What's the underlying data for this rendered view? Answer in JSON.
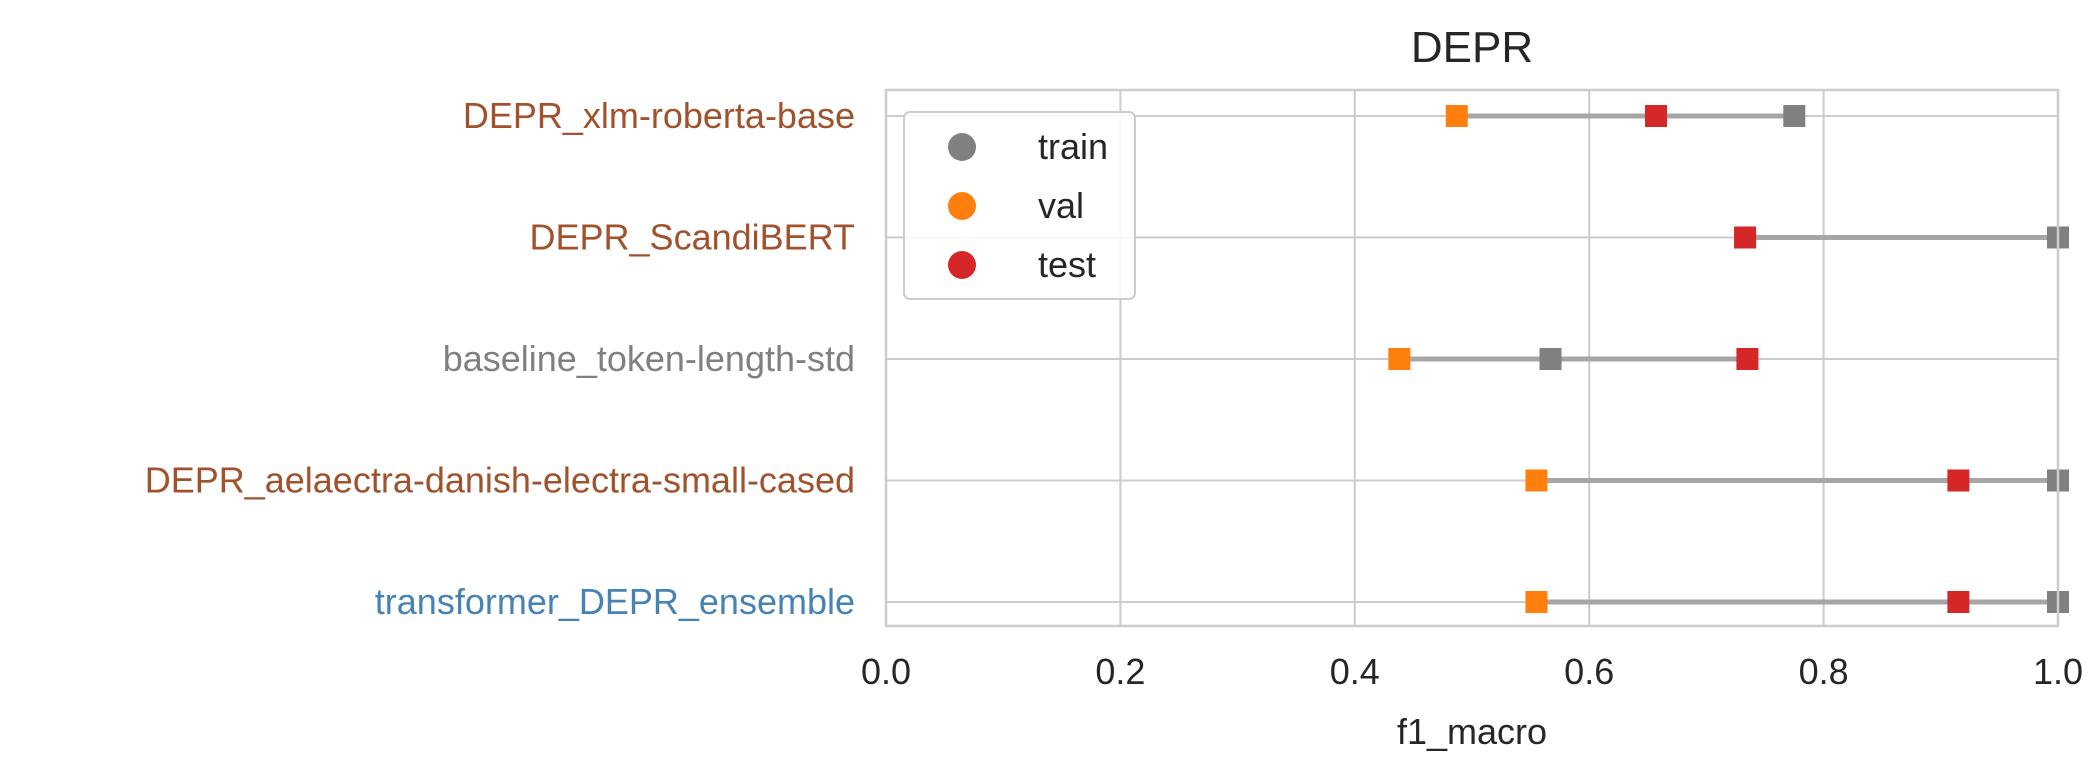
{
  "chart_data": {
    "type": "dumbbell",
    "title": "DEPR",
    "xlabel": "f1_macro",
    "ylabel": "",
    "xlim": [
      0.0,
      1.0
    ],
    "xticks": [
      "0.0",
      "0.2",
      "0.4",
      "0.6",
      "0.8",
      "1.0"
    ],
    "grid": true,
    "legend_position": "top-left",
    "legend": [
      {
        "name": "train",
        "color": "#808080"
      },
      {
        "name": "val",
        "color": "#ff7f0e"
      },
      {
        "name": "test",
        "color": "#d62728"
      }
    ],
    "connector_color": "#a6a6a6",
    "categories": [
      {
        "label": "DEPR_xlm-roberta-base",
        "label_color": "#a0522d",
        "train": 0.775,
        "val": 0.487,
        "test": 0.657
      },
      {
        "label": "DEPR_ScandiBERT",
        "label_color": "#a0522d",
        "train": 1.0,
        "val": 0.733,
        "test": 0.733
      },
      {
        "label": "baseline_token-length-std",
        "label_color": "#808080",
        "train": 0.567,
        "val": 0.438,
        "test": 0.735
      },
      {
        "label": "DEPR_aelaectra-danish-electra-small-cased",
        "label_color": "#a0522d",
        "train": 1.0,
        "val": 0.555,
        "test": 0.915
      },
      {
        "label": "transformer_DEPR_ensemble",
        "label_color": "#4682b4",
        "train": 1.0,
        "val": 0.555,
        "test": 0.915
      }
    ]
  }
}
